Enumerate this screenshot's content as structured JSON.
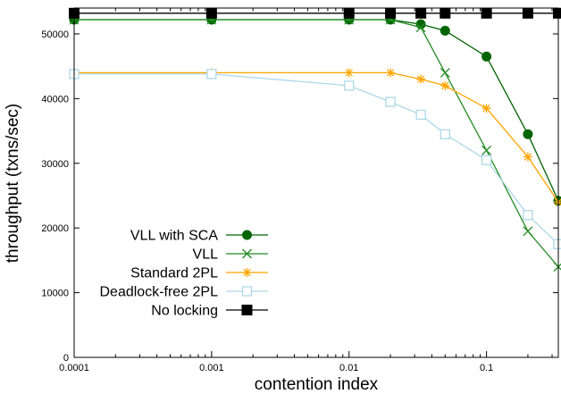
{
  "chart_data": {
    "type": "line",
    "xlabel": "contention index",
    "ylabel": "throughput (txns/sec)",
    "xscale": "log",
    "xlim": [
      0.0001,
      0.333
    ],
    "ylim": [
      0,
      54000
    ],
    "x_ticks": [
      {
        "value": 0.0001,
        "label": "0.0001"
      },
      {
        "value": 0.001,
        "label": "0.001"
      },
      {
        "value": 0.01,
        "label": "0.01"
      },
      {
        "value": 0.1,
        "label": "0.1"
      }
    ],
    "y_ticks": [
      {
        "value": 0,
        "label": "0"
      },
      {
        "value": 10000,
        "label": "10000"
      },
      {
        "value": 20000,
        "label": "20000"
      },
      {
        "value": 30000,
        "label": "30000"
      },
      {
        "value": 40000,
        "label": "40000"
      },
      {
        "value": 50000,
        "label": "50000"
      }
    ],
    "grid": false,
    "legend_position": "bottom-left",
    "series": [
      {
        "name": "VLL with SCA",
        "color": "#006400",
        "marker": "filled-circle",
        "points": [
          [
            0.0001,
            52200
          ],
          [
            0.001,
            52200
          ],
          [
            0.01,
            52200
          ],
          [
            0.02,
            52200
          ],
          [
            0.0333,
            51500
          ],
          [
            0.05,
            50500
          ],
          [
            0.1,
            46500
          ],
          [
            0.2,
            34500
          ],
          [
            0.333,
            24200
          ]
        ]
      },
      {
        "name": "VLL",
        "color": "#228b22",
        "marker": "x",
        "points": [
          [
            0.0001,
            52200
          ],
          [
            0.001,
            52200
          ],
          [
            0.01,
            52200
          ],
          [
            0.02,
            52200
          ],
          [
            0.0333,
            51000
          ],
          [
            0.05,
            44000
          ],
          [
            0.1,
            32000
          ],
          [
            0.2,
            19500
          ],
          [
            0.333,
            14000
          ]
        ]
      },
      {
        "name": "Standard 2PL",
        "color": "#ffa500",
        "marker": "star",
        "points": [
          [
            0.0001,
            44000
          ],
          [
            0.001,
            44000
          ],
          [
            0.01,
            44000
          ],
          [
            0.02,
            44000
          ],
          [
            0.0333,
            43000
          ],
          [
            0.05,
            42000
          ],
          [
            0.1,
            38500
          ],
          [
            0.2,
            31000
          ],
          [
            0.333,
            24000
          ]
        ]
      },
      {
        "name": "Deadlock-free 2PL",
        "color": "#add8e6",
        "marker": "open-square",
        "points": [
          [
            0.0001,
            43800
          ],
          [
            0.001,
            43800
          ],
          [
            0.01,
            42000
          ],
          [
            0.02,
            39500
          ],
          [
            0.0333,
            37500
          ],
          [
            0.05,
            34500
          ],
          [
            0.1,
            30500
          ],
          [
            0.2,
            22000
          ],
          [
            0.333,
            17500
          ]
        ]
      },
      {
        "name": "No locking",
        "color": "#000000",
        "marker": "filled-square",
        "points": [
          [
            0.0001,
            53200
          ],
          [
            0.001,
            53200
          ],
          [
            0.01,
            53200
          ],
          [
            0.02,
            53200
          ],
          [
            0.0333,
            53200
          ],
          [
            0.05,
            53200
          ],
          [
            0.1,
            53200
          ],
          [
            0.2,
            53200
          ],
          [
            0.333,
            53200
          ]
        ]
      }
    ]
  }
}
